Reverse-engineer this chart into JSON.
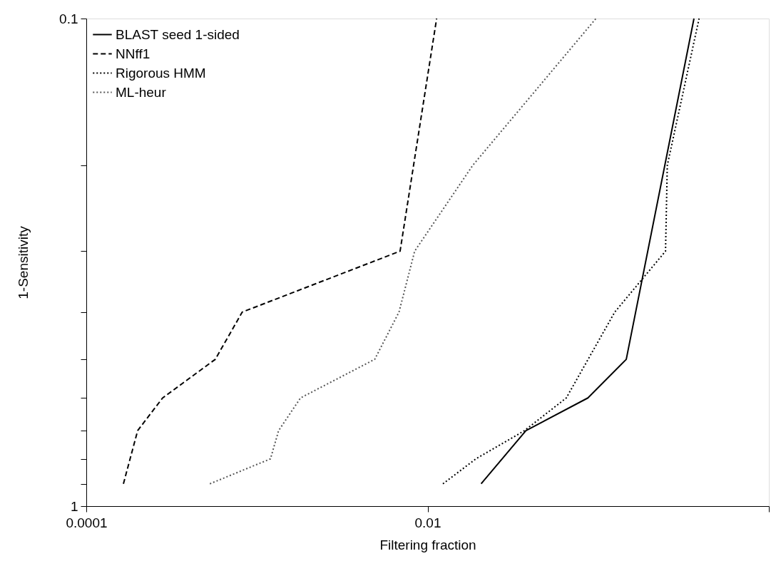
{
  "chart_data": {
    "type": "line",
    "xlabel": "Filtering fraction",
    "ylabel": "1-Sensitivity",
    "log": "xy",
    "xlim": [
      0.0001,
      1
    ],
    "ylim": [
      1,
      0.1
    ],
    "xticks": [
      0.0001,
      0.01,
      {
        "value": 1,
        "label": null
      }
    ],
    "yticks": [
      0.1,
      {
        "value": 0.2,
        "label": null
      },
      {
        "value": 0.3,
        "label": null
      },
      {
        "value": 0.4,
        "label": null
      },
      {
        "value": 0.5,
        "label": null
      },
      {
        "value": 0.6,
        "label": null
      },
      {
        "value": 0.7,
        "label": null
      },
      {
        "value": 0.8,
        "label": null
      },
      {
        "value": 0.9,
        "label": null
      },
      1
    ],
    "legend": "top left",
    "marker": "none",
    "series": [
      {
        "name": "BLAST seed 1-sided",
        "color": "#000000",
        "line_style": "solid",
        "x": [
          0.0206,
          0.0377,
          0.087,
          0.146,
          0.364
        ],
        "values": [
          0.9,
          0.7,
          0.6,
          0.5,
          0.1
        ]
      },
      {
        "name": "NNff1",
        "color": "#000000",
        "line_style": "dashed",
        "x": [
          0.000165,
          0.0002,
          0.00028,
          0.00057,
          0.00082,
          0.0069,
          0.0113
        ],
        "values": [
          0.9,
          0.7,
          0.6,
          0.5,
          0.4,
          0.3,
          0.1
        ]
      },
      {
        "name": "Rigorous HMM",
        "color": "#000000",
        "line_style": "dotted",
        "x": [
          0.0123,
          0.0192,
          0.037,
          0.065,
          0.125,
          0.248,
          0.254,
          0.39
        ],
        "values": [
          0.9,
          0.8,
          0.7,
          0.6,
          0.4,
          0.3,
          0.2,
          0.1
        ]
      },
      {
        "name": "ML-heur",
        "color": "#555555",
        "line_style": "dotted",
        "x": [
          0.00053,
          0.0012,
          0.00134,
          0.0018,
          0.0049,
          0.0068,
          0.0084,
          0.0184,
          0.097
        ],
        "values": [
          0.9,
          0.8,
          0.7,
          0.6,
          0.5,
          0.4,
          0.3,
          0.2,
          0.1
        ]
      }
    ]
  }
}
